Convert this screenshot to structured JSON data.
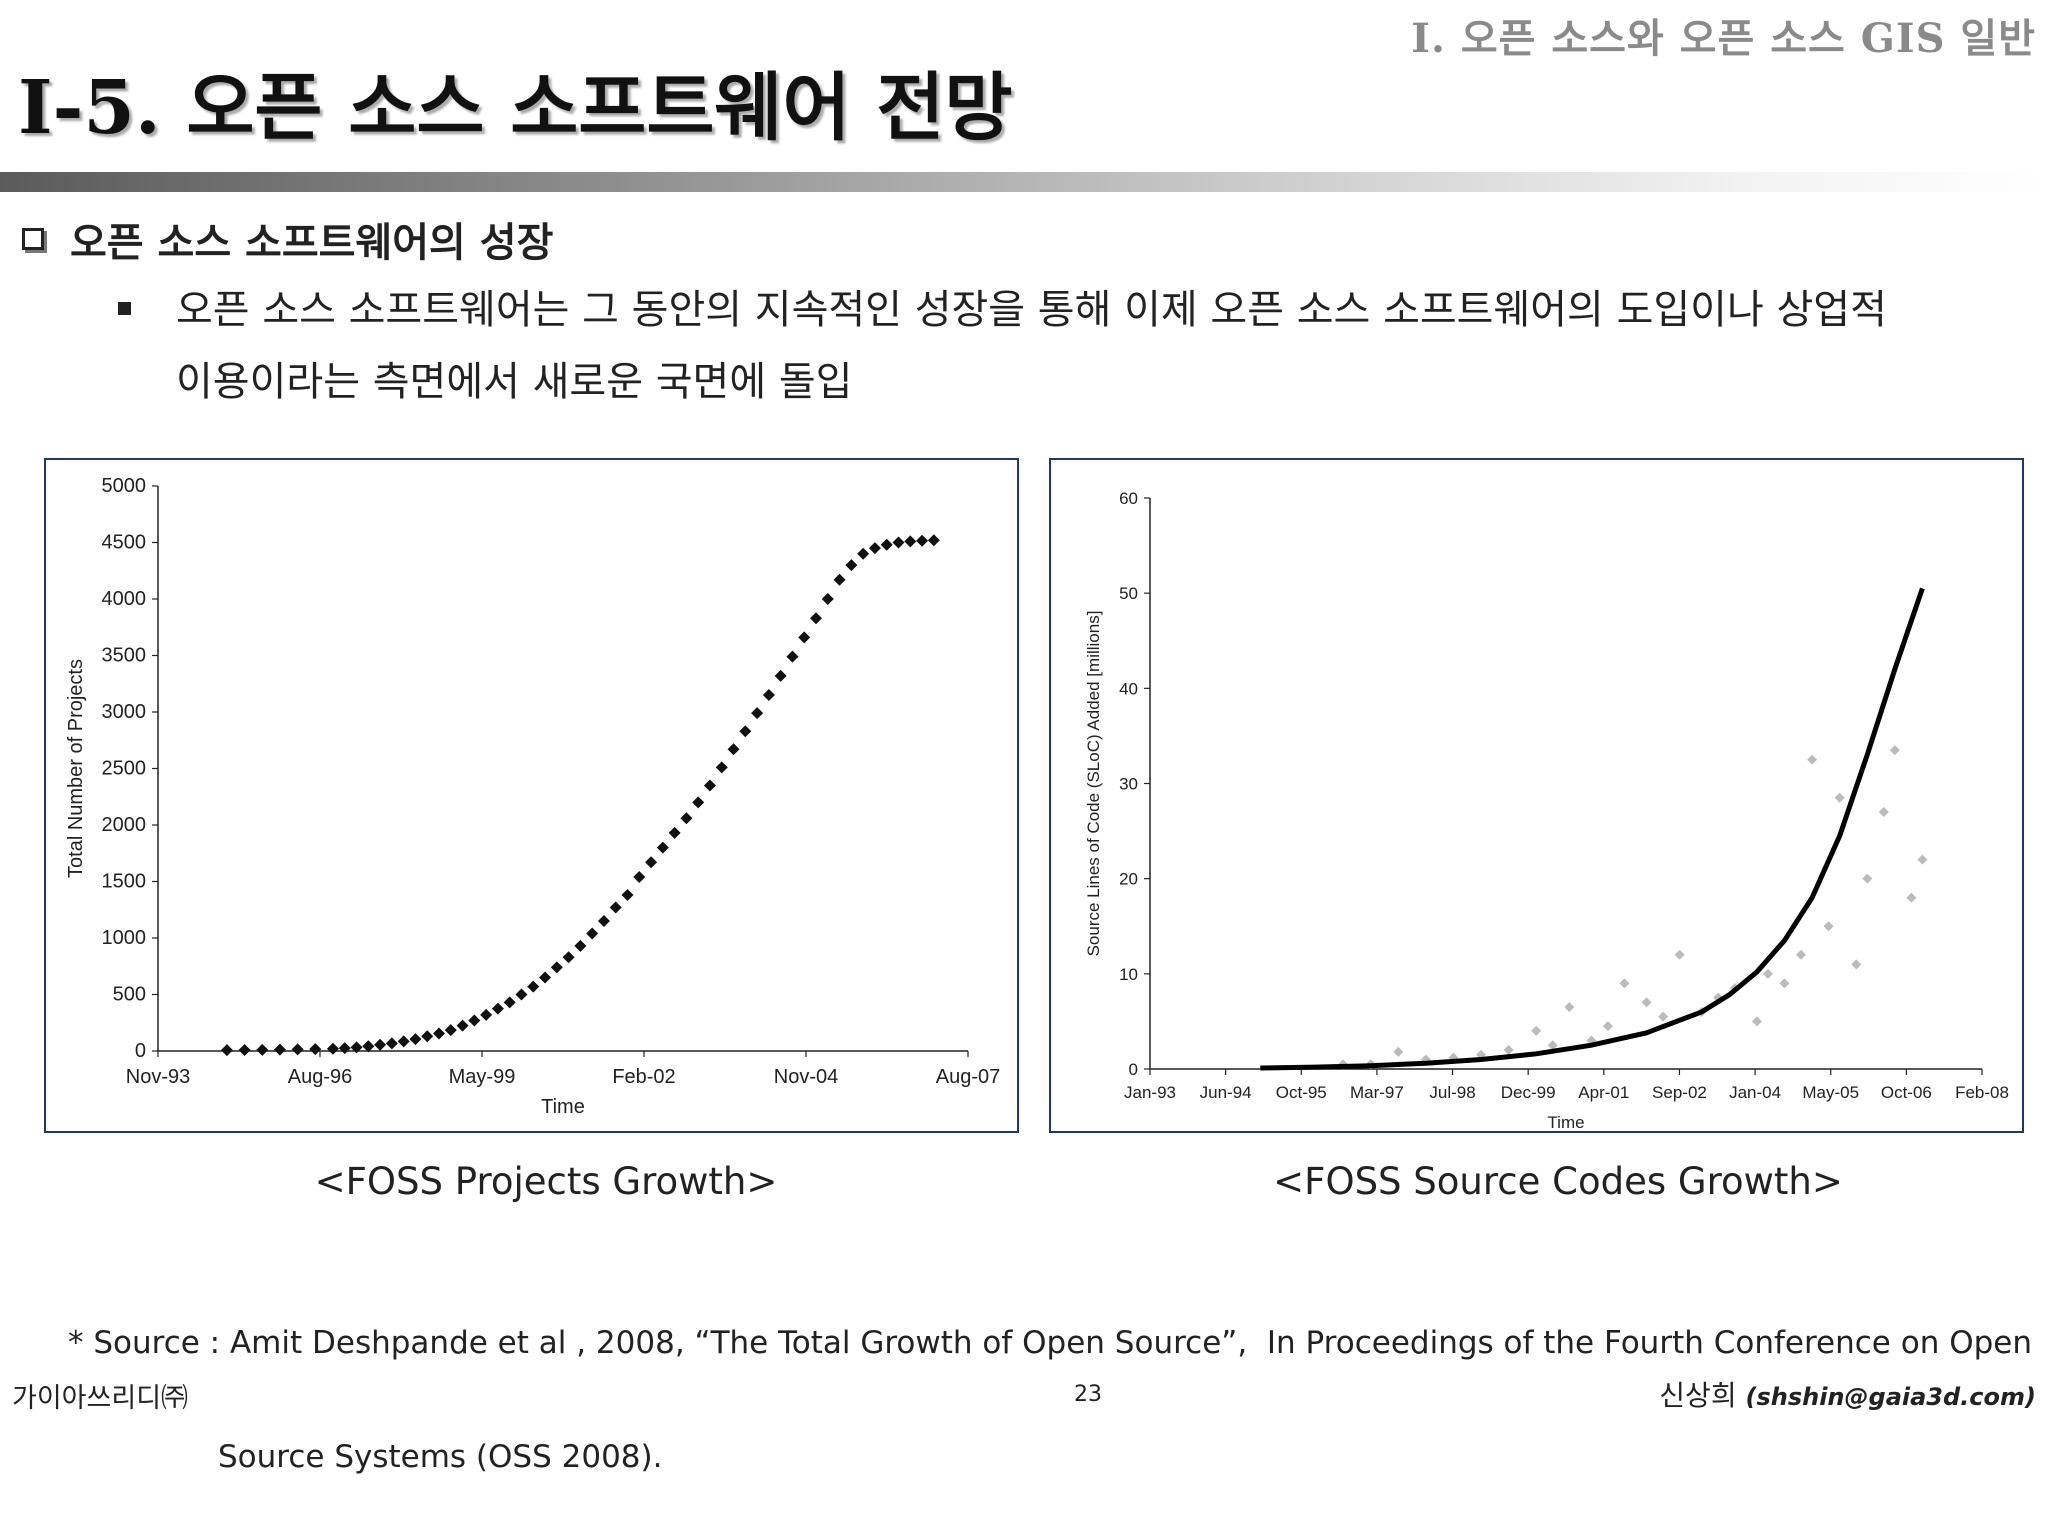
{
  "header": {
    "section_label": "I. 오픈 소스와 오픈 소스 GIS 일반",
    "title": "I-5. 오픈 소스 소프트웨어 전망"
  },
  "content": {
    "heading": "오픈 소스 소프트웨어의 성장",
    "bullet_line1": "오픈 소스 소프트웨어는 그 동안의 지속적인 성장을 통해 이제 오픈 소스 소프트웨어의 도입이나 상업적",
    "bullet_line2": "이용이라는 측면에서 새로운 국면에 돌입"
  },
  "captions": {
    "chart1": "<FOSS Projects Growth>",
    "chart2": "<FOSS Source Codes Growth>"
  },
  "source": {
    "line1": "* Source : Amit Deshpande et al , 2008, “The Total Growth of Open Source”,  In Proceedings of the Fourth Conference on Open",
    "line2": "Source Systems (OSS 2008)."
  },
  "footer": {
    "company": "가이아쓰리디㈜",
    "page_number": "23",
    "author": "신상희",
    "email": "(shshin@gaia3d.com)"
  },
  "chart_data": [
    {
      "type": "scatter",
      "xlabel": "Time",
      "ylabel": "Total Number of Projects",
      "x_ticks": [
        "Nov-93",
        "Aug-96",
        "May-99",
        "Feb-02",
        "Nov-04",
        "Aug-07"
      ],
      "y_ticks": [
        0,
        500,
        1000,
        1500,
        2000,
        2500,
        3000,
        3500,
        4000,
        4500,
        5000
      ],
      "x_range": [
        1993.83,
        2007.58
      ],
      "ylim": [
        0,
        5000
      ],
      "grid": false,
      "marker": "diamond",
      "marker_color": "#111111",
      "series": [
        {
          "x": [
            1995.0,
            1995.3,
            1995.6,
            1995.9,
            1996.2,
            1996.5,
            1996.8,
            1997.0,
            1997.2,
            1997.4,
            1997.6,
            1997.8,
            1998.0,
            1998.2,
            1998.4,
            1998.6,
            1998.8,
            1999.0,
            1999.2,
            1999.4,
            1999.6,
            1999.8,
            2000.0,
            2000.2,
            2000.4,
            2000.6,
            2000.8,
            2001.0,
            2001.2,
            2001.4,
            2001.6,
            2001.8,
            2002.0,
            2002.2,
            2002.4,
            2002.6,
            2002.8,
            2003.0,
            2003.2,
            2003.4,
            2003.6,
            2003.8,
            2004.0,
            2004.2,
            2004.4,
            2004.6,
            2004.8,
            2005.0,
            2005.2,
            2005.4,
            2005.6,
            2005.8,
            2006.0,
            2006.2,
            2006.4,
            2006.6,
            2006.8,
            2007.0
          ],
          "y": [
            8,
            9,
            10,
            12,
            14,
            17,
            20,
            25,
            32,
            42,
            55,
            68,
            85,
            105,
            130,
            155,
            185,
            225,
            270,
            320,
            375,
            430,
            500,
            570,
            650,
            740,
            830,
            930,
            1040,
            1150,
            1270,
            1380,
            1540,
            1670,
            1800,
            1930,
            2060,
            2200,
            2350,
            2510,
            2670,
            2830,
            2990,
            3150,
            3320,
            3490,
            3660,
            3830,
            4000,
            4170,
            4300,
            4400,
            4450,
            4480,
            4500,
            4510,
            4515,
            4520
          ]
        }
      ]
    },
    {
      "type": "scatter",
      "xlabel": "Time",
      "ylabel": "Source Lines of Code (SLoC) Added [millions]",
      "x_ticks": [
        "Jan-93",
        "Jun-94",
        "Oct-95",
        "Mar-97",
        "Jul-98",
        "Dec-99",
        "Apr-01",
        "Sep-02",
        "Jan-04",
        "May-05",
        "Oct-06",
        "Feb-08"
      ],
      "y_ticks": [
        0,
        10,
        20,
        30,
        40,
        50,
        60
      ],
      "x_range": [
        1993.0,
        2008.08
      ],
      "ylim": [
        0,
        60
      ],
      "grid": false,
      "series": [
        {
          "name": "",
          "kind": "line",
          "color": "#000000",
          "x": [
            1995.0,
            1996.0,
            1997.0,
            1998.0,
            1999.0,
            2000.0,
            2001.0,
            2002.0,
            2003.0,
            2003.5,
            2004.0,
            2004.5,
            2005.0,
            2005.5,
            2006.0,
            2006.5,
            2007.0
          ],
          "y": [
            0.1,
            0.2,
            0.35,
            0.6,
            1.0,
            1.6,
            2.5,
            3.8,
            6.0,
            7.8,
            10.2,
            13.5,
            18.0,
            24.5,
            33.0,
            42.0,
            50.5
          ]
        },
        {
          "name": "",
          "kind": "points",
          "color": "#bbbbbb",
          "x": [
            1996.5,
            1997.0,
            1997.5,
            1998.0,
            1998.5,
            1999.0,
            1999.5,
            2000.0,
            2000.3,
            2000.6,
            2001.0,
            2001.3,
            2001.6,
            2002.0,
            2002.3,
            2002.6,
            2003.0,
            2003.3,
            2003.6,
            2004.0,
            2004.2,
            2004.5,
            2004.8,
            2005.0,
            2005.3,
            2005.5,
            2005.8,
            2006.0,
            2006.3,
            2006.5,
            2006.8,
            2007.0
          ],
          "y": [
            0.5,
            0.5,
            1.8,
            1.0,
            1.2,
            1.5,
            2.0,
            4.0,
            2.5,
            6.5,
            3.0,
            4.5,
            9.0,
            7.0,
            5.5,
            12.0,
            6.0,
            7.5,
            8.5,
            5.0,
            10.0,
            9.0,
            12.0,
            32.5,
            15.0,
            28.5,
            11.0,
            20.0,
            27.0,
            33.5,
            18.0,
            22.0
          ]
        }
      ]
    }
  ]
}
